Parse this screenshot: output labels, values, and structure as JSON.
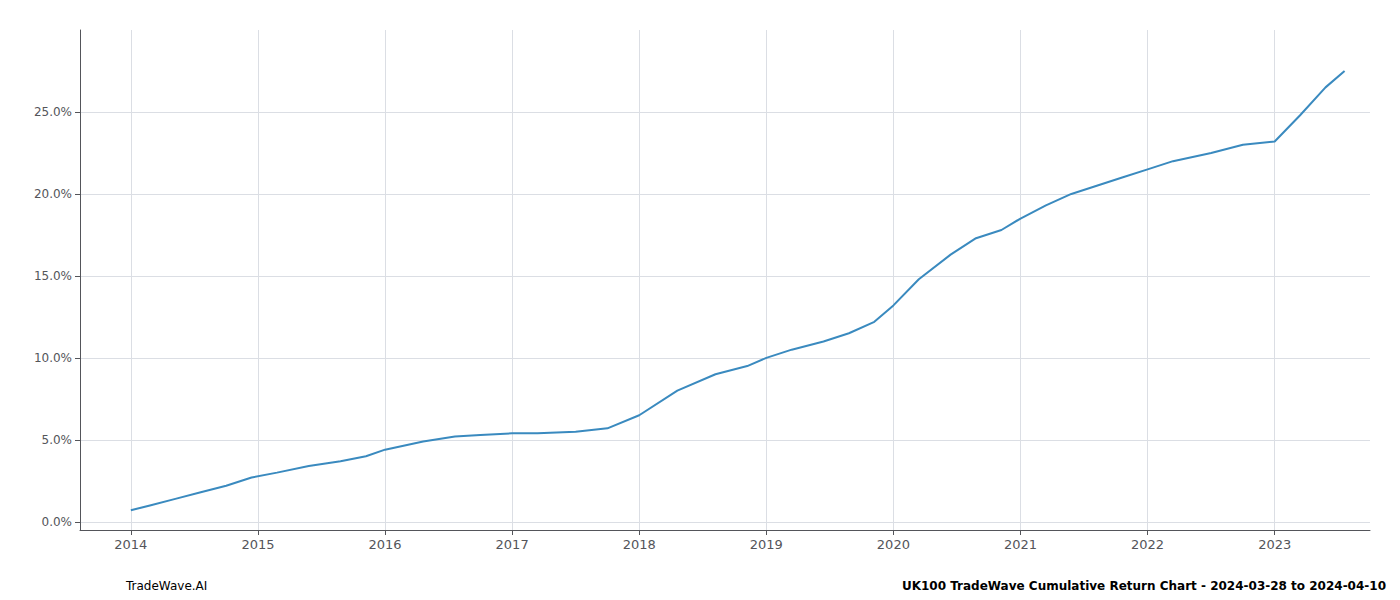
{
  "chart_data": {
    "type": "line",
    "annotations": [
      "TradeWave.AI",
      "UK100 TradeWave Cumulative Return Chart - 2024-03-28 to 2024-04-10"
    ],
    "color": "#3a8abf",
    "x": [
      2014.0,
      2014.15,
      2014.35,
      2014.55,
      2014.75,
      2014.95,
      2015.15,
      2015.4,
      2015.65,
      2015.85,
      2016.0,
      2016.3,
      2016.55,
      2016.75,
      2017.0,
      2017.2,
      2017.5,
      2017.75,
      2018.0,
      2018.3,
      2018.6,
      2018.85,
      2019.0,
      2019.2,
      2019.45,
      2019.65,
      2019.85,
      2020.0,
      2020.2,
      2020.45,
      2020.65,
      2020.85,
      2021.0,
      2021.2,
      2021.4,
      2021.6,
      2021.8,
      2022.0,
      2022.2,
      2022.5,
      2022.75,
      2023.0,
      2023.2,
      2023.4,
      2023.55
    ],
    "values": [
      0.007,
      0.01,
      0.014,
      0.018,
      0.022,
      0.027,
      0.03,
      0.034,
      0.037,
      0.04,
      0.044,
      0.049,
      0.052,
      0.053,
      0.054,
      0.054,
      0.055,
      0.057,
      0.065,
      0.08,
      0.09,
      0.095,
      0.1,
      0.105,
      0.11,
      0.115,
      0.122,
      0.132,
      0.148,
      0.163,
      0.173,
      0.178,
      0.185,
      0.193,
      0.2,
      0.205,
      0.21,
      0.215,
      0.22,
      0.225,
      0.23,
      0.232,
      0.248,
      0.265,
      0.275
    ],
    "xlim": [
      2013.6,
      2023.75
    ],
    "xticks": [
      2014,
      2015,
      2016,
      2017,
      2018,
      2019,
      2020,
      2021,
      2022,
      2023
    ],
    "ylim": [
      -0.005,
      0.3
    ],
    "yticks": [
      {
        "value": 0.0,
        "label": "0.0%"
      },
      {
        "value": 0.05,
        "label": "5.0%"
      },
      {
        "value": 0.1,
        "label": "10.0%"
      },
      {
        "value": 0.15,
        "label": "15.0%"
      },
      {
        "value": 0.2,
        "label": "20.0%"
      },
      {
        "value": 0.25,
        "label": "25.0%"
      }
    ],
    "grid": true
  }
}
